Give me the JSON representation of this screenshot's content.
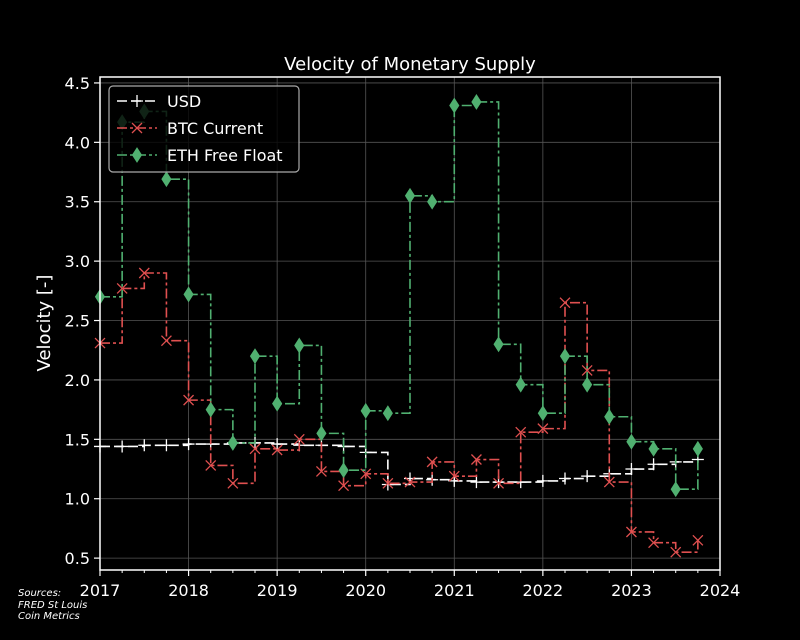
{
  "sources": {
    "heading": "Sources:",
    "lines": [
      "FRED St Louis",
      "Coin Metrics"
    ]
  },
  "chart_data": {
    "type": "line",
    "step": true,
    "title": "Velocity of Monetary Supply",
    "xlabel": "",
    "ylabel": "Velocity [-]",
    "xlim": [
      2017,
      2024
    ],
    "ylim": [
      0.4,
      4.55
    ],
    "xticks": [
      2017,
      2018,
      2019,
      2020,
      2021,
      2022,
      2023,
      2024
    ],
    "yticks": [
      0.5,
      1.0,
      1.5,
      2.0,
      2.5,
      3.0,
      3.5,
      4.0,
      4.5
    ],
    "ytick_labels": [
      "0.5",
      "1.0",
      "1.5",
      "2.0",
      "2.5",
      "3.0",
      "3.5",
      "4.0",
      "4.5"
    ],
    "grid": true,
    "legend": "upper-left",
    "background": "#000000",
    "series": [
      {
        "name": "USD",
        "color": "#ffffff",
        "marker": "plus",
        "dash": "10,4",
        "x": [
          2017.0,
          2017.25,
          2017.5,
          2017.75,
          2018.0,
          2018.25,
          2018.5,
          2018.75,
          2019.0,
          2019.25,
          2019.5,
          2019.75,
          2020.0,
          2020.25,
          2020.5,
          2020.75,
          2021.0,
          2021.25,
          2021.5,
          2021.75,
          2022.0,
          2022.25,
          2022.5,
          2022.75,
          2023.0,
          2023.25,
          2023.5,
          2023.75
        ],
        "values": [
          1.44,
          1.44,
          1.45,
          1.45,
          1.46,
          1.46,
          1.47,
          1.47,
          1.46,
          1.45,
          1.45,
          1.44,
          1.39,
          1.12,
          1.17,
          1.16,
          1.15,
          1.14,
          1.14,
          1.14,
          1.15,
          1.17,
          1.19,
          1.21,
          1.25,
          1.29,
          1.31,
          1.33
        ]
      },
      {
        "name": "BTC Current",
        "color": "#e05050",
        "marker": "x",
        "dash": "10,3,3,3",
        "x": [
          2017.0,
          2017.25,
          2017.5,
          2017.75,
          2018.0,
          2018.25,
          2018.5,
          2018.75,
          2019.0,
          2019.25,
          2019.5,
          2019.75,
          2020.0,
          2020.25,
          2020.5,
          2020.75,
          2021.0,
          2021.25,
          2021.5,
          2021.75,
          2022.0,
          2022.25,
          2022.5,
          2022.75,
          2023.0,
          2023.25,
          2023.5,
          2023.75
        ],
        "values": [
          2.31,
          2.77,
          2.9,
          2.33,
          1.83,
          1.28,
          1.13,
          1.42,
          1.41,
          1.5,
          1.23,
          1.11,
          1.21,
          1.13,
          1.14,
          1.31,
          1.19,
          1.33,
          1.13,
          1.56,
          1.59,
          2.65,
          2.08,
          1.14,
          0.72,
          0.63,
          0.55,
          0.65
        ]
      },
      {
        "name": "ETH Free Float",
        "color": "#50b070",
        "marker": "diamond",
        "dash": "10,3,3,3",
        "x": [
          2017.0,
          2017.25,
          2017.5,
          2017.75,
          2018.0,
          2018.25,
          2018.5,
          2018.75,
          2019.0,
          2019.25,
          2019.5,
          2019.75,
          2020.0,
          2020.25,
          2020.5,
          2020.75,
          2021.0,
          2021.25,
          2021.5,
          2021.75,
          2022.0,
          2022.25,
          2022.5,
          2022.75,
          2023.0,
          2023.25,
          2023.5,
          2023.75
        ],
        "values": [
          2.7,
          4.17,
          4.26,
          3.69,
          2.72,
          1.75,
          1.47,
          2.2,
          1.8,
          2.29,
          1.55,
          1.24,
          1.74,
          1.72,
          3.55,
          3.5,
          4.31,
          4.34,
          2.3,
          1.96,
          1.72,
          2.2,
          1.96,
          1.69,
          1.48,
          1.42,
          1.08,
          1.42
        ]
      }
    ]
  }
}
